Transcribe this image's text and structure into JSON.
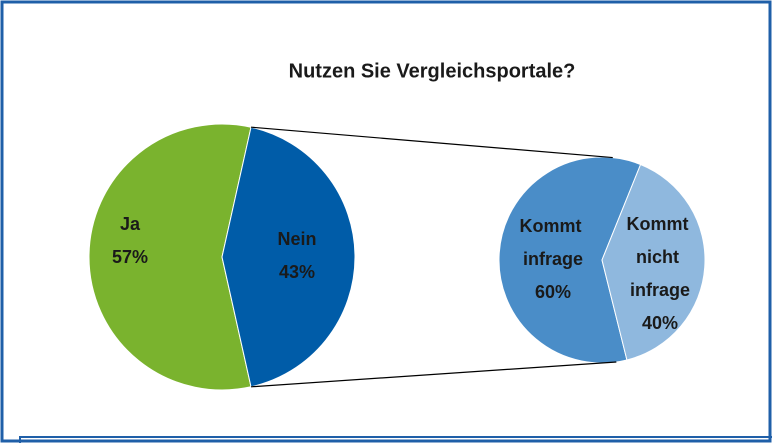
{
  "chart_data": {
    "type": "pie",
    "title": "Nutzen Sie Vergleichsportale?",
    "categories": [
      "Ja",
      "Nein"
    ],
    "values": [
      57,
      43
    ],
    "value_labels": [
      "57%",
      "43%"
    ],
    "colors": [
      "#7ab32e",
      "#005ca8"
    ],
    "secondary": {
      "categories": [
        "Kommt infrage",
        "Kommt nicht infrage"
      ],
      "values": [
        60,
        40
      ],
      "value_labels": [
        "60%",
        "40%"
      ],
      "colors": [
        "#4a8dc8",
        "#8fb8de"
      ]
    }
  }
}
